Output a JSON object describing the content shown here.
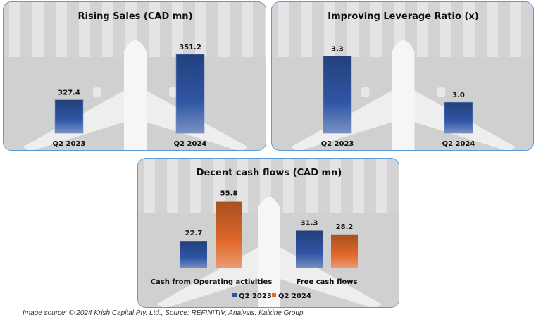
{
  "chart_data": [
    {
      "type": "bar",
      "title": "Rising Sales (CAD mn)",
      "categories": [
        "Q2 2023",
        "Q2 2024"
      ],
      "values": [
        327.4,
        351.2
      ],
      "labels": [
        "327.4",
        "351.2"
      ],
      "xlabel": "",
      "ylabel": "",
      "ylim": [
        310,
        360
      ],
      "grid": false,
      "colors": [
        "#2f55a4"
      ]
    },
    {
      "type": "bar",
      "title": "Improving Leverage Ratio (x)",
      "categories": [
        "Q2 2023",
        "Q2 2024"
      ],
      "values": [
        3.3,
        3.0
      ],
      "labels": [
        "3.3",
        "3.0"
      ],
      "xlabel": "",
      "ylabel": "",
      "ylim": [
        2.8,
        3.42
      ],
      "grid": false,
      "colors": [
        "#2f55a4"
      ]
    },
    {
      "type": "bar",
      "title": "Decent cash flows (CAD mn)",
      "categories": [
        "Cash from Operating activities",
        "Free cash flows"
      ],
      "series": [
        {
          "name": "Q2 2023",
          "values": [
            22.7,
            31.3
          ],
          "labels": [
            "22.7",
            "31.3"
          ],
          "color": "#2f55a4"
        },
        {
          "name": "Q2 2024",
          "values": [
            55.8,
            28.2
          ],
          "labels": [
            "55.8",
            "28.2"
          ],
          "color": "#e0692a"
        }
      ],
      "xlabel": "",
      "ylabel": "",
      "ylim": [
        0,
        62
      ],
      "grid": false,
      "legend": "bottom"
    }
  ],
  "caption": "Image source: © 2024 Krish Capital Pty. Ltd., Source: REFINITIV, Analysis: Kalkine Group"
}
